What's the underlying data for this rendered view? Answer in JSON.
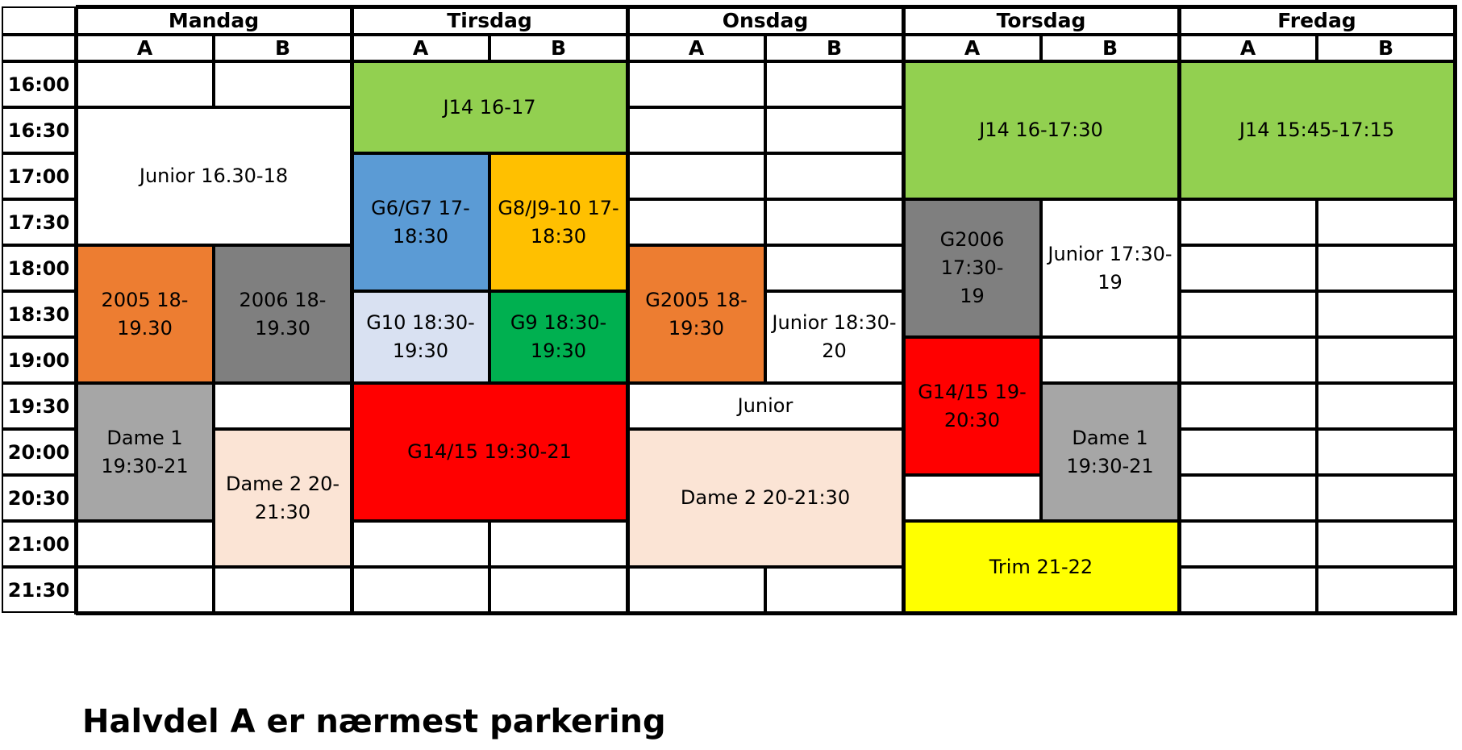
{
  "days": [
    {
      "name": "Mandag"
    },
    {
      "name": "Tirsdag"
    },
    {
      "name": "Onsdag"
    },
    {
      "name": "Torsdag"
    },
    {
      "name": "Fredag"
    }
  ],
  "halves": [
    "A",
    "B"
  ],
  "times": [
    "16:00",
    "16:30",
    "17:00",
    "17:30",
    "18:00",
    "18:30",
    "19:00",
    "19:30",
    "20:00",
    "20:30",
    "21:00",
    "21:30"
  ],
  "colors": {
    "green": "#92D050",
    "orange": "#ED7D31",
    "darkgray": "#7F7F7F",
    "gray": "#A6A6A6",
    "peach": "#FBE4D5",
    "blue": "#5B9BD5",
    "amber": "#FFC000",
    "lightblue": "#D9E1F2",
    "darkgreen": "#00B050",
    "red": "#FF0000",
    "yellow": "#FFFF00",
    "white": "#FFFFFF"
  },
  "bookings": [
    {
      "day": 0,
      "col": 0,
      "span": 2,
      "start": 1,
      "len": 3,
      "label": "Junior 16.30-18",
      "color": "white"
    },
    {
      "day": 0,
      "col": 0,
      "span": 1,
      "start": 4,
      "len": 3,
      "label": "2005 18-\n19.30",
      "color": "orange"
    },
    {
      "day": 0,
      "col": 1,
      "span": 1,
      "start": 4,
      "len": 3,
      "label": "2006 18-\n19.30",
      "color": "darkgray"
    },
    {
      "day": 0,
      "col": 0,
      "span": 1,
      "start": 7,
      "len": 3,
      "label": "Dame 1\n19:30-21",
      "color": "gray"
    },
    {
      "day": 0,
      "col": 1,
      "span": 1,
      "start": 8,
      "len": 3,
      "label": "Dame 2 20-\n21:30",
      "color": "peach"
    },
    {
      "day": 1,
      "col": 0,
      "span": 2,
      "start": 0,
      "len": 2,
      "label": "J14 16-17",
      "color": "green"
    },
    {
      "day": 1,
      "col": 0,
      "span": 1,
      "start": 2,
      "len": 3,
      "label": "G6/G7 17-\n18:30",
      "color": "blue"
    },
    {
      "day": 1,
      "col": 1,
      "span": 1,
      "start": 2,
      "len": 3,
      "label": "G8/J9-10 17-\n18:30",
      "color": "amber"
    },
    {
      "day": 1,
      "col": 0,
      "span": 1,
      "start": 5,
      "len": 2,
      "label": "G10 18:30-\n19:30",
      "color": "lightblue"
    },
    {
      "day": 1,
      "col": 1,
      "span": 1,
      "start": 5,
      "len": 2,
      "label": "G9 18:30-\n19:30",
      "color": "darkgreen"
    },
    {
      "day": 1,
      "col": 0,
      "span": 2,
      "start": 7,
      "len": 3,
      "label": "G14/15 19:30-21",
      "color": "red"
    },
    {
      "day": 2,
      "col": 0,
      "span": 1,
      "start": 4,
      "len": 3,
      "label": "G2005 18-\n19:30",
      "color": "orange"
    },
    {
      "day": 2,
      "col": 1,
      "span": 1,
      "start": 5,
      "len": 2,
      "label": "Junior 18:30-\n20",
      "color": "white"
    },
    {
      "day": 2,
      "col": 0,
      "span": 2,
      "start": 7,
      "len": 1,
      "label": "Junior",
      "color": "white"
    },
    {
      "day": 2,
      "col": 0,
      "span": 2,
      "start": 8,
      "len": 3,
      "label": "Dame 2 20-21:30",
      "color": "peach"
    },
    {
      "day": 3,
      "col": 0,
      "span": 2,
      "start": 0,
      "len": 3,
      "label": "J14 16-17:30",
      "color": "green"
    },
    {
      "day": 3,
      "col": 0,
      "span": 1,
      "start": 3,
      "len": 3,
      "label": "G2006 17:30-\n19",
      "color": "darkgray"
    },
    {
      "day": 3,
      "col": 1,
      "span": 1,
      "start": 3,
      "len": 3,
      "label": "Junior 17:30-\n19",
      "color": "white"
    },
    {
      "day": 3,
      "col": 0,
      "span": 1,
      "start": 6,
      "len": 3,
      "label": "G14/15 19-\n20:30",
      "color": "red"
    },
    {
      "day": 3,
      "col": 1,
      "span": 1,
      "start": 7,
      "len": 3,
      "label": "Dame 1\n19:30-21",
      "color": "gray"
    },
    {
      "day": 3,
      "col": 0,
      "span": 2,
      "start": 10,
      "len": 2,
      "label": "Trim 21-22",
      "color": "yellow"
    },
    {
      "day": 4,
      "col": 0,
      "span": 2,
      "start": 0,
      "len": 3,
      "label": "J14 15:45-17:15",
      "color": "green"
    }
  ],
  "note": "Halvdel A er nærmest parkering"
}
